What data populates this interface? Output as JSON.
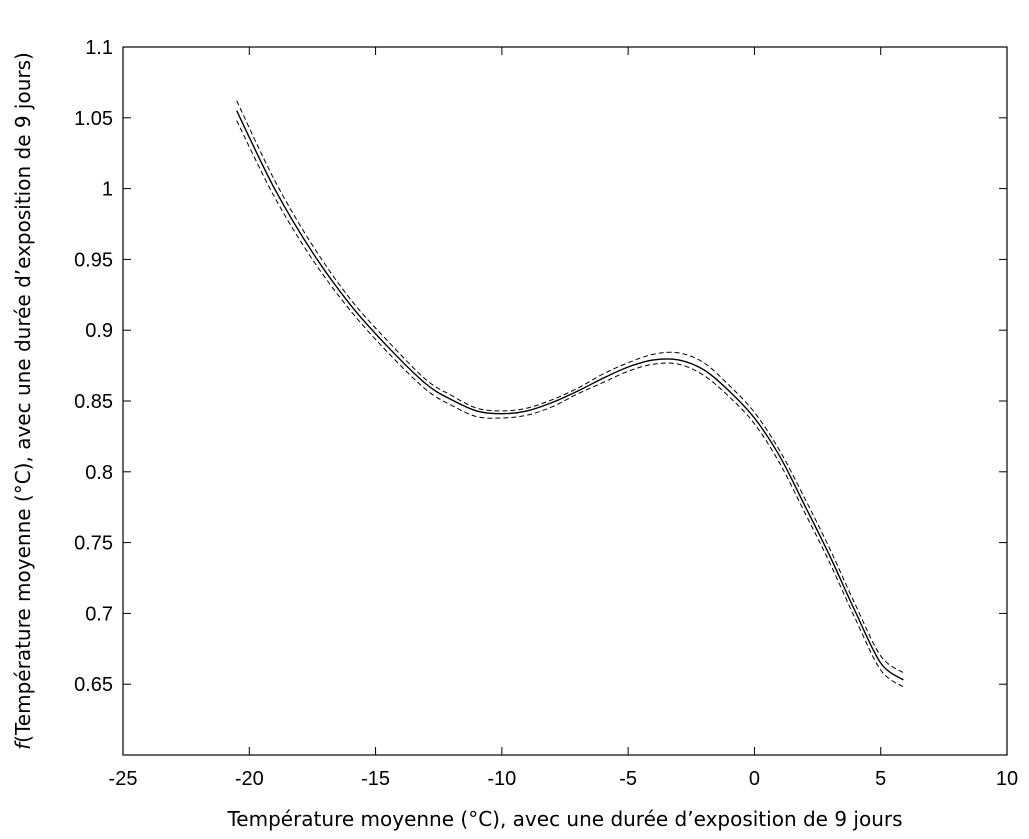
{
  "chart_data": {
    "type": "line",
    "xlabel": "Température moyenne (°C), avec une durée d’exposition de 9 jours",
    "ylabel_prefix": "f",
    "ylabel_rest": "(Température moyenne (°C), avec une durée d’exposition de 9 jours)",
    "xlim": [
      -25,
      10
    ],
    "ylim": [
      0.6,
      1.1
    ],
    "xticks": [
      -25,
      -20,
      -15,
      -10,
      -5,
      0,
      5,
      10
    ],
    "xtick_labels": [
      "-25",
      "-20",
      "-15",
      "-10",
      "-5",
      "0",
      "5",
      "10"
    ],
    "yticks": [
      0.65,
      0.7,
      0.75,
      0.8,
      0.85,
      0.9,
      0.95,
      1,
      1.05,
      1.1
    ],
    "ytick_labels": [
      "0.65",
      "0.7",
      "0.75",
      "0.8",
      "0.85",
      "0.9",
      "0.95",
      "1",
      "1.05",
      "1.1"
    ],
    "grid": false,
    "series": [
      {
        "style": "solid",
        "x": [
          -20.5,
          -19,
          -17.5,
          -16,
          -14.5,
          -13,
          -12,
          -11,
          -10,
          -9,
          -8,
          -7,
          -6,
          -5,
          -4,
          -3,
          -2,
          -1,
          0,
          1,
          2,
          3,
          4,
          5,
          5.9
        ],
        "y": [
          1.055,
          1.0,
          0.955,
          0.918,
          0.888,
          0.862,
          0.851,
          0.843,
          0.841,
          0.843,
          0.849,
          0.857,
          0.866,
          0.874,
          0.879,
          0.879,
          0.872,
          0.857,
          0.838,
          0.811,
          0.776,
          0.74,
          0.701,
          0.665,
          0.653
        ]
      },
      {
        "style": "dashed",
        "x": [
          -20.5,
          -19,
          -17.5,
          -16,
          -14.5,
          -13,
          -12,
          -11,
          -10,
          -9,
          -8,
          -7,
          -6,
          -5,
          -4,
          -3,
          -2,
          -1,
          0,
          1,
          2,
          3,
          4,
          5,
          5.9
        ],
        "y": [
          1.062,
          1.006,
          0.96,
          0.922,
          0.892,
          0.865,
          0.854,
          0.845,
          0.843,
          0.845,
          0.851,
          0.859,
          0.869,
          0.877,
          0.883,
          0.884,
          0.877,
          0.861,
          0.842,
          0.815,
          0.781,
          0.745,
          0.706,
          0.67,
          0.658
        ]
      },
      {
        "style": "dashed",
        "x": [
          -20.5,
          -19,
          -17.5,
          -16,
          -14.5,
          -13,
          -12,
          -11,
          -10,
          -9,
          -8,
          -7,
          -6,
          -5,
          -4,
          -3,
          -2,
          -1,
          0,
          1,
          2,
          3,
          4,
          5,
          5.9
        ],
        "y": [
          1.048,
          0.994,
          0.95,
          0.914,
          0.884,
          0.858,
          0.847,
          0.839,
          0.838,
          0.84,
          0.846,
          0.855,
          0.863,
          0.871,
          0.876,
          0.876,
          0.868,
          0.853,
          0.834,
          0.806,
          0.771,
          0.735,
          0.696,
          0.66,
          0.648
        ]
      }
    ]
  }
}
